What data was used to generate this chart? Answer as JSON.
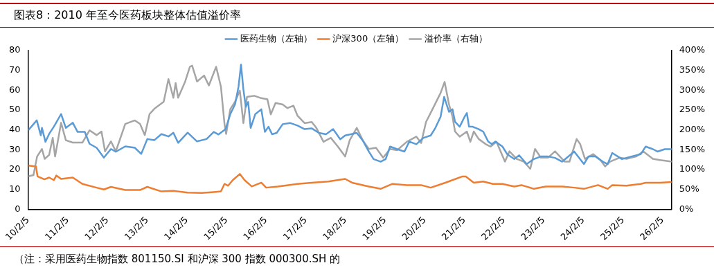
{
  "chart_data": {
    "type": "line",
    "title": "图表8：2010 年至今医药板块整体估值溢价率",
    "annotations": [
      "（注：采用医药生物指数 801150.SI 和沪深 300 指数 000300.SH 的"
    ],
    "legend": "top",
    "grid": false,
    "marker": "none",
    "xlim": [
      "2010-02-05",
      "2026-04-29"
    ],
    "xticks": [
      {
        "value": "2010-02-05",
        "label": "10/2/5"
      },
      {
        "value": "2011-02-05",
        "label": "11/2/5"
      },
      {
        "value": "2012-02-05",
        "label": "12/2/5"
      },
      {
        "value": "2013-02-05",
        "label": "13/2/5"
      },
      {
        "value": "2014-02-05",
        "label": "14/2/5"
      },
      {
        "value": "2015-02-05",
        "label": "15/2/5"
      },
      {
        "value": "2016-02-05",
        "label": "16/2/5"
      },
      {
        "value": "2017-02-05",
        "label": "17/2/5"
      },
      {
        "value": "2018-02-05",
        "label": "18/2/5"
      },
      {
        "value": "2019-02-05",
        "label": "19/2/5"
      },
      {
        "value": "2020-02-05",
        "label": "20/2/5"
      },
      {
        "value": "2021-02-05",
        "label": "21/2/5"
      },
      {
        "value": "2022-02-05",
        "label": "22/2/5"
      },
      {
        "value": "2023-02-05",
        "label": "23/2/5"
      },
      {
        "value": "2024-02-05",
        "label": "24/2/5"
      },
      {
        "value": "2025-02-05",
        "label": "25/2/5"
      },
      {
        "value": "2026-02-05",
        "label": "26/2/5"
      }
    ],
    "ylim": [
      0,
      80
    ],
    "yticks": [
      0,
      10,
      20,
      30,
      40,
      50,
      60,
      70,
      80
    ],
    "y2lim": [
      0,
      400
    ],
    "y2ticks": [
      {
        "value": 0,
        "label": "0%"
      },
      {
        "value": 50,
        "label": "50%"
      },
      {
        "value": 100,
        "label": "100%"
      },
      {
        "value": 150,
        "label": "150%"
      },
      {
        "value": 200,
        "label": "200%"
      },
      {
        "value": 250,
        "label": "250%"
      },
      {
        "value": 300,
        "label": "300%"
      },
      {
        "value": 350,
        "label": "350%"
      },
      {
        "value": 400,
        "label": "400%"
      }
    ],
    "series": [
      {
        "name": "医药生物（左轴）",
        "color": "#5b9bd5",
        "axis": "y",
        "x": [
          "2010-02-07",
          "2010-04-26",
          "2010-06-02",
          "2010-06-13",
          "2010-07-15",
          "2010-08-18",
          "2010-10-01",
          "2010-12-06",
          "2011-01-19",
          "2011-03-24",
          "2011-05-07",
          "2011-07-12",
          "2011-08-25",
          "2011-10-29",
          "2012-01-04",
          "2012-03-09",
          "2012-04-23",
          "2012-07-19",
          "2012-10-15",
          "2012-12-13",
          "2013-02-07",
          "2013-04-12",
          "2013-06-17",
          "2013-08-21",
          "2013-10-05",
          "2013-11-18",
          "2014-02-14",
          "2014-05-11",
          "2014-08-07",
          "2014-10-12",
          "2014-11-25",
          "2015-01-29",
          "2015-03-13",
          "2015-04-26",
          "2015-05-28",
          "2015-06-20",
          "2015-07-12",
          "2015-08-03",
          "2015-08-25",
          "2015-09-17",
          "2015-10-29",
          "2015-12-24",
          "2016-01-26",
          "2016-02-28",
          "2016-04-01",
          "2016-05-14",
          "2016-07-08",
          "2016-09-13",
          "2016-11-21",
          "2017-01-26",
          "2017-04-01",
          "2017-06-06",
          "2017-08-11",
          "2017-10-15",
          "2017-12-20",
          "2018-02-03",
          "2018-03-27",
          "2018-05-21",
          "2018-07-15",
          "2018-09-09",
          "2018-10-23",
          "2018-12-27",
          "2019-02-11",
          "2019-03-24",
          "2019-05-28",
          "2019-08-03",
          "2019-09-17",
          "2019-11-21",
          "2020-01-26",
          "2020-04-01",
          "2020-05-14",
          "2020-07-01",
          "2020-08-03",
          "2020-09-17",
          "2020-10-19",
          "2020-11-11",
          "2020-12-24",
          "2021-02-07",
          "2021-02-28",
          "2021-03-20",
          "2021-04-23",
          "2021-06-17",
          "2021-07-29",
          "2021-09-13",
          "2021-10-15",
          "2021-11-18",
          "2022-01-22",
          "2022-03-06",
          "2022-05-11",
          "2022-06-24",
          "2022-09-02",
          "2022-11-07",
          "2023-01-11",
          "2023-03-17",
          "2023-05-21",
          "2023-07-26",
          "2023-11-14",
          "2024-02-11",
          "2024-03-24",
          "2024-05-28",
          "2024-08-03",
          "2024-09-17",
          "2024-10-29",
          "2025-01-26",
          "2025-04-23",
          "2025-07-19",
          "2025-09-02",
          "2025-11-07",
          "2025-12-20",
          "2026-02-25",
          "2026-04-29"
        ],
        "values": [
          39.8,
          44.8,
          37.3,
          41,
          34,
          38,
          41.7,
          48,
          41,
          43.6,
          39,
          39,
          33,
          31,
          26,
          30.4,
          29,
          31.7,
          31,
          27.9,
          35.4,
          34.8,
          37.9,
          36.7,
          38.6,
          33.5,
          38.6,
          34.2,
          35.4,
          39,
          37.7,
          40.4,
          47.9,
          52.9,
          61.7,
          72.9,
          60.4,
          51.6,
          54.1,
          41,
          47.9,
          50.4,
          39,
          41.6,
          37.8,
          38.5,
          42.9,
          43.5,
          42.2,
          40.4,
          40.8,
          38.5,
          37.8,
          40.4,
          35.3,
          37.2,
          37.8,
          38.5,
          34.7,
          29.1,
          25.3,
          24,
          25.3,
          31.6,
          30.3,
          29.1,
          34.1,
          32.8,
          36,
          37.2,
          41,
          46.6,
          56.6,
          49.1,
          50.4,
          44.1,
          41.6,
          46.6,
          48.5,
          41.6,
          41.6,
          40.4,
          39.1,
          34.1,
          32.8,
          34.1,
          31.6,
          27.8,
          25.3,
          27.2,
          22.8,
          25.3,
          26.6,
          26.6,
          25.9,
          24,
          29.1,
          22.8,
          26.6,
          26.6,
          24,
          22.8,
          28.4,
          25.3,
          26.6,
          27.8,
          31.6,
          30.3,
          29.1,
          30.3,
          30.3
        ]
      },
      {
        "name": "沪深300（左轴）",
        "color": "#ed7d31",
        "axis": "y",
        "x": [
          "2010-02-07",
          "2010-04-19",
          "2010-05-03",
          "2010-07-05",
          "2010-08-18",
          "2010-10-01",
          "2010-10-23",
          "2010-12-06",
          "2011-03-24",
          "2011-06-20",
          "2011-10-29",
          "2012-01-04",
          "2012-03-09",
          "2012-07-19",
          "2012-12-02",
          "2013-02-07",
          "2013-06-17",
          "2013-10-05",
          "2014-02-14",
          "2014-06-24",
          "2014-11-03",
          "2014-12-17",
          "2015-01-19",
          "2015-02-21",
          "2015-04-05",
          "2015-06-09",
          "2015-07-23",
          "2015-09-27",
          "2015-12-24",
          "2016-02-07",
          "2016-05-25",
          "2016-11-21",
          "2017-04-01",
          "2017-09-02",
          "2018-02-03",
          "2018-04-08",
          "2018-09-09",
          "2018-12-27",
          "2019-04-15",
          "2019-08-25",
          "2020-01-04",
          "2020-04-01",
          "2020-08-14",
          "2021-01-15",
          "2021-02-18",
          "2021-05-03",
          "2021-07-29",
          "2021-10-26",
          "2022-01-22",
          "2022-05-11",
          "2022-07-15",
          "2022-11-07",
          "2023-02-25",
          "2023-07-26",
          "2023-11-14",
          "2024-02-11",
          "2024-06-20",
          "2024-09-17",
          "2024-10-29",
          "2025-03-09",
          "2025-07-19",
          "2025-09-02",
          "2026-01-11",
          "2026-04-29"
        ],
        "values": [
          22,
          21.6,
          16.6,
          15.1,
          16,
          14.7,
          17,
          15.3,
          16,
          12.8,
          10.9,
          10,
          11.3,
          9.7,
          9.7,
          11.3,
          9,
          9.3,
          8.4,
          8.2,
          8.8,
          9,
          12.8,
          11.9,
          14.7,
          17.8,
          14.7,
          11.5,
          13.4,
          10.9,
          11.5,
          12.8,
          13.4,
          14,
          15.3,
          13.4,
          11.5,
          10.3,
          12.8,
          12.2,
          12.2,
          10.9,
          13.4,
          16.5,
          16.5,
          13.4,
          14,
          12.8,
          12.8,
          11.5,
          12.2,
          10.3,
          11.5,
          11.5,
          10.9,
          10.3,
          12.2,
          10.3,
          12.2,
          11.9,
          12.8,
          13.4,
          13.4,
          13.7
        ]
      },
      {
        "name": "溢价率（右轴）",
        "color": "#a5a5a5",
        "axis": "y2",
        "x": [
          "2010-02-07",
          "2010-03-27",
          "2010-04-29",
          "2010-06-13",
          "2010-07-08",
          "2010-08-18",
          "2010-09-20",
          "2010-10-12",
          "2010-12-06",
          "2011-01-19",
          "2011-03-24",
          "2011-06-20",
          "2011-08-25",
          "2011-10-29",
          "2011-12-13",
          "2012-01-15",
          "2012-03-09",
          "2012-04-23",
          "2012-07-19",
          "2012-10-15",
          "2012-12-02",
          "2013-01-15",
          "2013-02-28",
          "2013-04-12",
          "2013-07-08",
          "2013-08-21",
          "2013-10-05",
          "2013-10-26",
          "2013-11-18",
          "2014-01-22",
          "2014-03-06",
          "2014-03-27",
          "2014-05-11",
          "2014-07-15",
          "2014-08-28",
          "2014-11-03",
          "2014-12-17",
          "2015-01-19",
          "2015-02-03",
          "2015-03-13",
          "2015-04-26",
          "2015-06-09",
          "2015-07-12",
          "2015-08-14",
          "2015-10-19",
          "2015-12-24",
          "2016-02-18",
          "2016-03-20",
          "2016-05-03",
          "2016-07-08",
          "2016-08-21",
          "2016-10-15",
          "2016-11-21",
          "2017-01-26",
          "2017-04-01",
          "2017-05-14",
          "2017-07-19",
          "2017-09-24",
          "2017-11-28",
          "2018-02-03",
          "2018-03-17",
          "2018-05-21",
          "2018-07-15",
          "2018-09-09",
          "2018-11-14",
          "2019-01-19",
          "2019-03-24",
          "2019-05-28",
          "2019-08-25",
          "2019-11-21",
          "2020-01-04",
          "2020-02-18",
          "2020-04-23",
          "2020-07-01",
          "2020-08-07",
          "2020-09-17",
          "2020-10-19",
          "2020-11-11",
          "2020-12-24",
          "2021-02-28",
          "2021-04-01",
          "2021-05-03",
          "2021-06-17",
          "2021-08-21",
          "2021-10-05",
          "2021-11-28",
          "2022-02-14",
          "2022-03-27",
          "2022-06-02",
          "2022-08-07",
          "2022-10-05",
          "2022-11-18",
          "2023-01-11",
          "2023-03-17",
          "2023-05-21",
          "2023-08-18",
          "2023-10-01",
          "2023-12-06",
          "2024-01-08",
          "2024-02-21",
          "2024-05-07",
          "2024-07-12",
          "2024-08-25",
          "2024-10-08",
          "2025-01-04",
          "2025-03-09",
          "2025-06-06",
          "2025-08-11",
          "2025-11-07",
          "2026-01-11",
          "2026-04-29"
        ],
        "values": [
          83,
          86,
          133,
          152,
          127,
          137,
          180,
          133,
          218,
          174,
          168,
          168,
          199,
          187,
          196,
          146,
          171,
          146,
          215,
          224,
          215,
          187,
          240,
          253,
          271,
          328,
          281,
          318,
          281,
          322,
          359,
          362,
          322,
          337,
          312,
          359,
          309,
          215,
          190,
          252,
          271,
          299,
          217,
          283,
          286,
          280,
          277,
          239,
          268,
          264,
          255,
          261,
          236,
          217,
          220,
          205,
          170,
          180,
          158,
          133,
          174,
          205,
          174,
          152,
          155,
          130,
          152,
          149,
          170,
          183,
          167,
          220,
          255,
          293,
          321,
          264,
          233,
          196,
          183,
          196,
          170,
          196,
          177,
          164,
          158,
          170,
          120,
          146,
          127,
          120,
          102,
          152,
          130,
          130,
          146,
          120,
          120,
          177,
          164,
          127,
          139,
          124,
          108,
          120,
          130,
          127,
          133,
          146,
          127,
          124,
          120
        ]
      }
    ]
  }
}
